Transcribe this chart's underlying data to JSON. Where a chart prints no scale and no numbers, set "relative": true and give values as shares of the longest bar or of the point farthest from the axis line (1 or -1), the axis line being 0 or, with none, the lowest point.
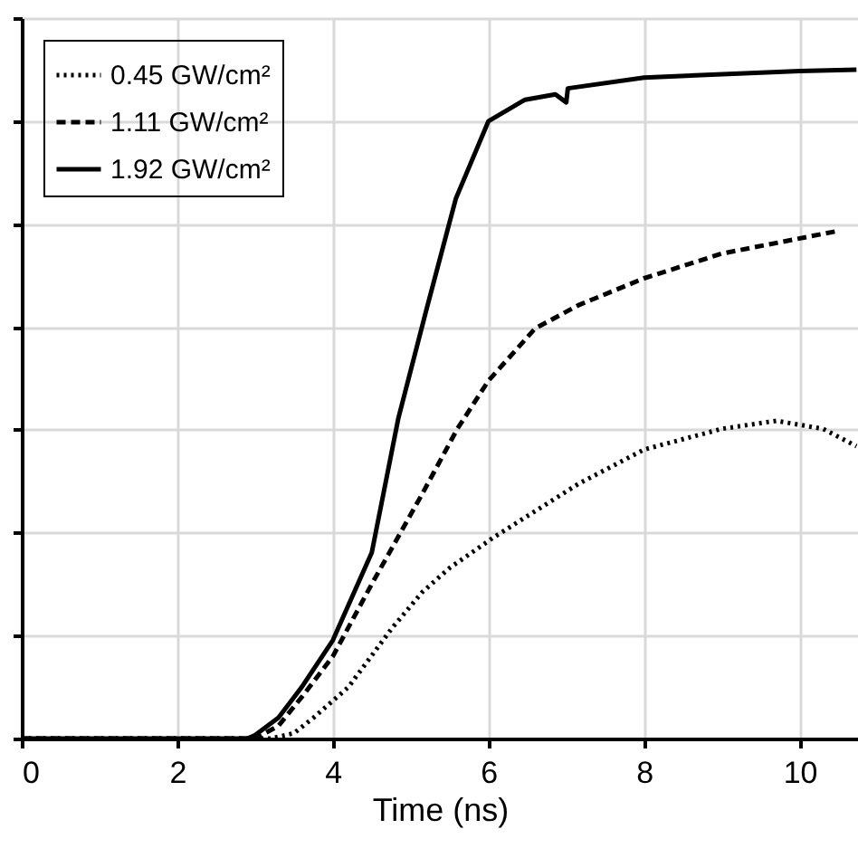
{
  "chart_data": {
    "type": "line",
    "xlabel": "Time (ns)",
    "relative": true,
    "xlim": [
      0,
      10.75
    ],
    "xticks": [
      0,
      2,
      4,
      6,
      8,
      10
    ],
    "grid": true,
    "legend": "top left",
    "marker": "none",
    "series": [
      {
        "name": "0.45 GW/cm²",
        "color": "#000000",
        "line_style": "dotted",
        "x": [
          0,
          3.2,
          3.5,
          3.75,
          4.2,
          4.76,
          5.15,
          5.5,
          6.07,
          7.16,
          8,
          9,
          9.7,
          10.3,
          10.73
        ],
        "values": [
          0,
          0,
          0.008,
          0.031,
          0.077,
          0.165,
          0.219,
          0.255,
          0.301,
          0.381,
          0.432,
          0.463,
          0.475,
          0.463,
          0.437
        ]
      },
      {
        "name": "1.11 GW/cm²",
        "color": "#000000",
        "line_style": "dashed",
        "x": [
          0,
          3.0,
          3.3,
          3.6,
          4.0,
          4.5,
          5.15,
          5.6,
          6.0,
          6.6,
          7.16,
          8,
          9,
          10.5
        ],
        "values": [
          0,
          0,
          0.019,
          0.062,
          0.123,
          0.231,
          0.366,
          0.463,
          0.535,
          0.613,
          0.648,
          0.688,
          0.725,
          0.759
        ]
      },
      {
        "name": "1.92 GW/cm²",
        "color": "#000000",
        "line_style": "solid",
        "x": [
          0,
          2.9,
          3.0,
          3.3,
          3.6,
          4.0,
          4.5,
          4.84,
          5.2,
          5.58,
          6.0,
          6.47,
          6.86,
          7.0,
          7.02,
          8,
          10,
          10.73
        ],
        "values": [
          0,
          0,
          0.005,
          0.031,
          0.077,
          0.147,
          0.278,
          0.478,
          0.64,
          0.807,
          0.923,
          0.955,
          0.963,
          0.951,
          0.972,
          0.988,
          0.998,
          1
        ]
      }
    ]
  }
}
